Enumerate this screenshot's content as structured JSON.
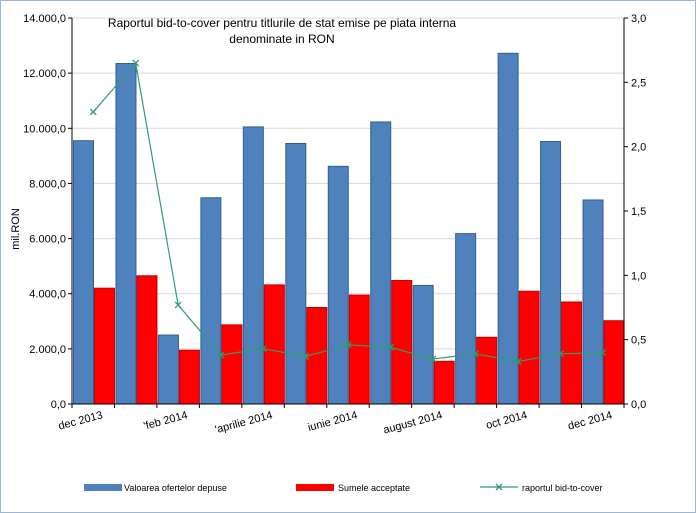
{
  "chart_data": {
    "type": "bar",
    "title_lines": [
      "Raportul bid-to-cover pentru titlurile de stat emise pe piata interna",
      "denominate in RON"
    ],
    "ylabel": "mil.RON",
    "ylim": [
      0,
      14000
    ],
    "y2lim": [
      0,
      3
    ],
    "yticks": [
      0,
      2000,
      4000,
      6000,
      8000,
      10000,
      12000,
      14000
    ],
    "yticks_labels": [
      "0,0",
      "2.000,0",
      "4.000,0",
      "6.000,0",
      "8.000,0",
      "10.000,0",
      "12.000,0",
      "14.000,0"
    ],
    "y2ticks": [
      0,
      0.5,
      1,
      1.5,
      2,
      2.5,
      3
    ],
    "y2ticks_labels": [
      "0,0",
      "0,5",
      "1,0",
      "1,5",
      "2,0",
      "2,5",
      "3,0"
    ],
    "x_labels": [
      "dec 2013",
      "'feb 2014",
      "'aprilie 2014",
      "iunie 2014",
      "august 2014",
      "oct 2014",
      "dec 2014"
    ],
    "x_label_positions": [
      0,
      2,
      4,
      6,
      8,
      10,
      12
    ],
    "n_categories": 13,
    "grid": "horizontal",
    "legend_position": "bottom",
    "series": [
      {
        "name": "Valoarea ofertelor depuse",
        "type": "bar",
        "axis": "left",
        "color": "#4f81bd",
        "values": [
          9550,
          12350,
          2500,
          7480,
          10050,
          9450,
          8620,
          10230,
          4300,
          6180,
          12720,
          9520,
          7400
        ]
      },
      {
        "name": "Sumele acceptate",
        "type": "bar",
        "axis": "left",
        "color": "#ff0000",
        "values": [
          4200,
          4650,
          1950,
          2870,
          4320,
          3500,
          3950,
          4480,
          1550,
          2420,
          4090,
          3700,
          3020
        ]
      },
      {
        "name": "raportul bid-to-cover",
        "type": "line",
        "axis": "right",
        "color": "#2e9e6e",
        "values": [
          2.27,
          2.65,
          0.77,
          0.38,
          0.43,
          0.37,
          0.46,
          0.44,
          0.35,
          0.39,
          0.33,
          0.39,
          0.4
        ]
      }
    ]
  }
}
